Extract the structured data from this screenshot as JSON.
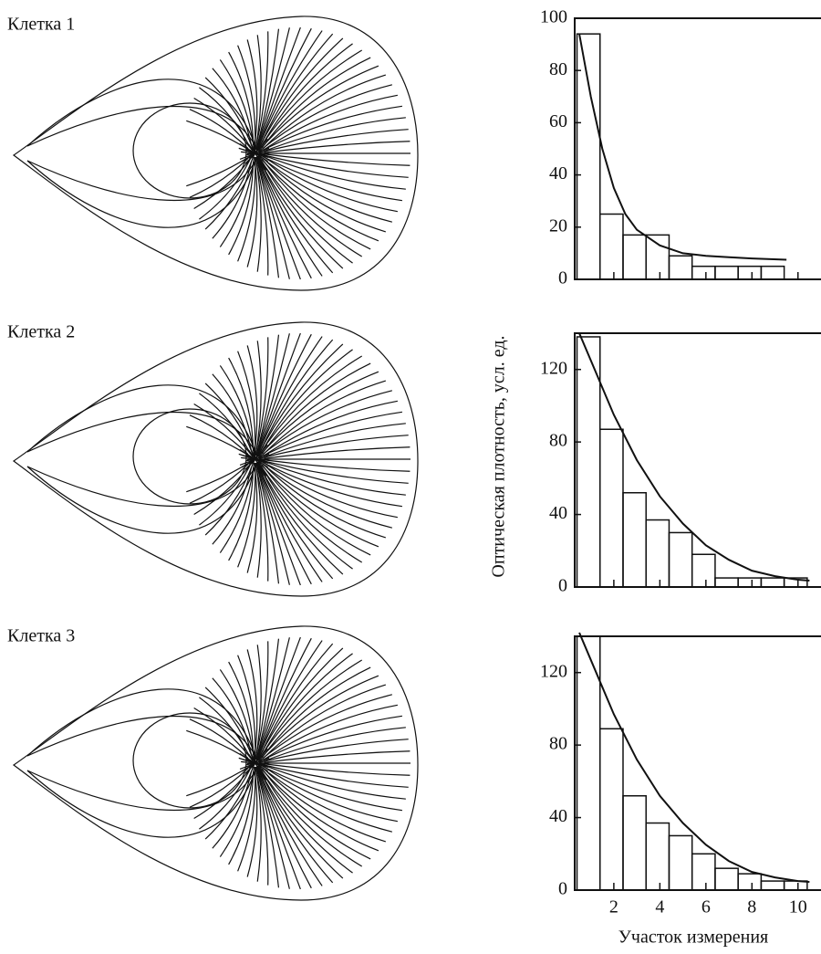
{
  "chart_data": [
    {
      "type": "histogram",
      "title": "Клетка 1",
      "bins": [
        0.4,
        1.4,
        2.4,
        3.4,
        4.4,
        5.4,
        6.4,
        7.4,
        8.4,
        9.4
      ],
      "counts": [
        94,
        25,
        17,
        17,
        9,
        5,
        5,
        5,
        5
      ],
      "fit": {
        "x": [
          0.5,
          1,
          1.5,
          2,
          2.5,
          3,
          4,
          5,
          6,
          7,
          8,
          9.5
        ],
        "y": [
          94,
          70,
          50,
          35,
          25,
          19,
          13,
          10,
          9,
          8.5,
          8,
          7.5
        ]
      },
      "xlim": [
        0.3,
        11
      ],
      "xticks": [
        2,
        4,
        6,
        8,
        10
      ],
      "show_xtick_labels": false,
      "ylim": [
        0,
        100
      ],
      "yticks": [
        0,
        20,
        40,
        60,
        80,
        100
      ]
    },
    {
      "type": "histogram",
      "title": "Клетка 2",
      "ylabel": "Оптическая плотность, усл. ед.",
      "bins": [
        0.4,
        1.4,
        2.4,
        3.4,
        4.4,
        5.4,
        6.4,
        7.4,
        8.4,
        9.4,
        10.4
      ],
      "counts": [
        138,
        87,
        52,
        37,
        30,
        18,
        5,
        5,
        5,
        5
      ],
      "fit": {
        "x": [
          0.5,
          1,
          2,
          3,
          4,
          5,
          6,
          7,
          8,
          9,
          10,
          10.5
        ],
        "y": [
          140,
          125,
          95,
          70,
          50,
          35,
          23,
          15,
          9,
          6,
          4,
          3.5
        ]
      },
      "xlim": [
        0.3,
        11
      ],
      "xticks": [
        2,
        4,
        6,
        8,
        10
      ],
      "show_xtick_labels": false,
      "ylim": [
        0,
        140
      ],
      "yticks": [
        0,
        40,
        80,
        120
      ]
    },
    {
      "type": "histogram",
      "title": "Клетка 3",
      "xlabel": "Участок измерения",
      "bins": [
        0.4,
        1.4,
        2.4,
        3.4,
        4.4,
        5.4,
        6.4,
        7.4,
        8.4,
        9.4,
        10.4
      ],
      "counts": [
        140,
        89,
        52,
        37,
        30,
        20,
        12,
        9,
        5,
        5
      ],
      "fit": {
        "x": [
          0.5,
          1,
          2,
          3,
          4,
          5,
          6,
          7,
          8,
          9,
          10,
          10.5
        ],
        "y": [
          142,
          127,
          97,
          72,
          52,
          37,
          25,
          16,
          10,
          7,
          5,
          4.5
        ]
      },
      "xlim": [
        0.3,
        11
      ],
      "xticks": [
        2,
        4,
        6,
        8,
        10
      ],
      "show_xtick_labels": true,
      "ylim": [
        0,
        140
      ],
      "yticks": [
        0,
        40,
        80,
        120
      ]
    }
  ]
}
